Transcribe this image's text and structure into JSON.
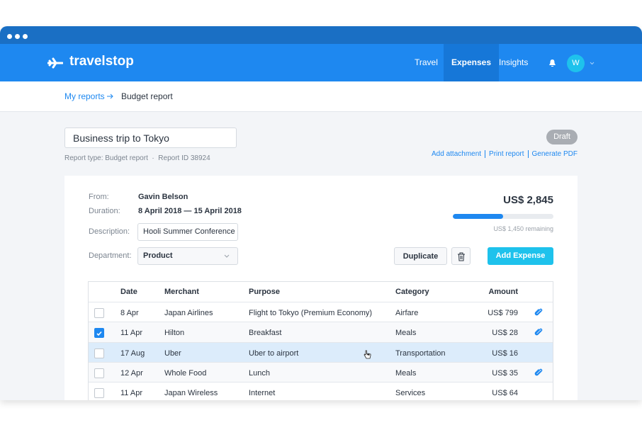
{
  "nav": {
    "logo": "travelstop",
    "links": [
      "Travel",
      "Expenses",
      "Insights"
    ],
    "active": 1,
    "avatar": "W"
  },
  "breadcrumb": {
    "parent": "My reports",
    "current": "Budget report"
  },
  "report": {
    "title": "Business trip to Tokyo",
    "meta": "Report type: Budget report  ·  Report ID 38924",
    "status": "Draft",
    "actions": [
      "Add attachment",
      "Print report",
      "Generate PDF"
    ]
  },
  "details": {
    "fields": [
      {
        "label": "From:",
        "value": "Gavin Belson"
      },
      {
        "label": "Duration:",
        "value": "8 April 2018 — 15 April 2018"
      }
    ],
    "description": {
      "label": "Description:",
      "value": "Hooli Summer Conference"
    },
    "department": {
      "label": "Department:",
      "value": "Product"
    },
    "total": "US$ 2,845",
    "remaining": "US$ 1,450 remaining",
    "buttons": {
      "duplicate": "Duplicate",
      "add": "Add Expense"
    }
  },
  "table": {
    "columns": [
      "Date",
      "Merchant",
      "Purpose",
      "Category",
      "Amount"
    ],
    "rows": [
      {
        "date": "8 Apr",
        "merchant": "Japan Airlines",
        "purpose": "Flight to Tokyo (Premium Economy)",
        "category": "Airfare",
        "amount": "US$ 799",
        "checked": false,
        "attachment": true,
        "highlighted": false
      },
      {
        "date": "11 Apr",
        "merchant": "Hilton",
        "purpose": "Breakfast",
        "category": "Meals",
        "amount": "US$ 28",
        "checked": true,
        "attachment": true,
        "highlighted": false
      },
      {
        "date": "17 Aug",
        "merchant": "Uber",
        "purpose": "Uber to airport",
        "category": "Transportation",
        "amount": "US$ 16",
        "checked": false,
        "attachment": false,
        "highlighted": true
      },
      {
        "date": "12 Apr",
        "merchant": "Whole Food",
        "purpose": "Lunch",
        "category": "Meals",
        "amount": "US$ 35",
        "checked": false,
        "attachment": true,
        "highlighted": false
      },
      {
        "date": "11 Apr",
        "merchant": "Japan Wireless",
        "purpose": "Internet",
        "category": "Services",
        "amount": "US$ 64",
        "checked": false,
        "attachment": false,
        "highlighted": false
      }
    ]
  }
}
